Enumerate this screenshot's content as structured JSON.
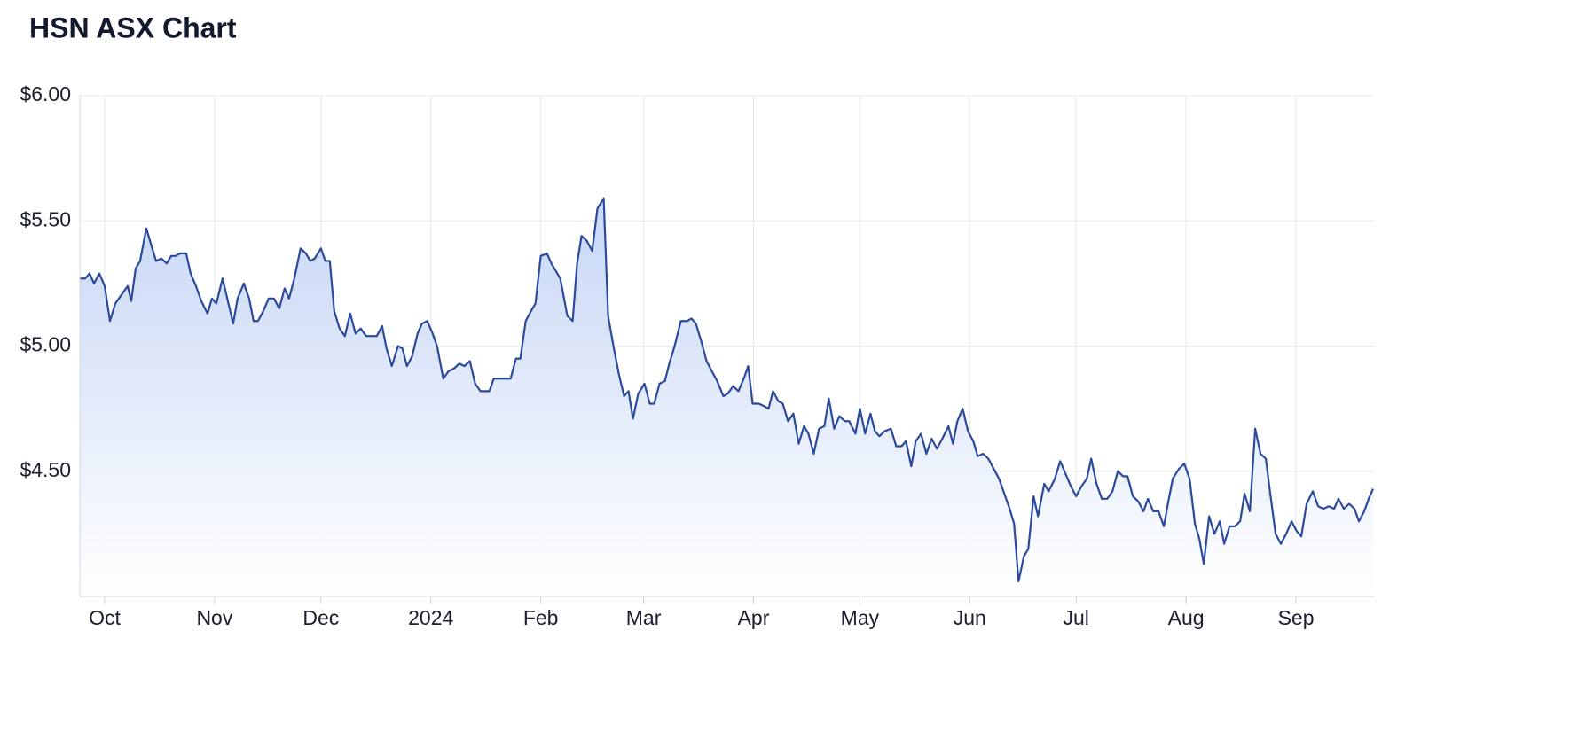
{
  "chart_data": {
    "type": "area",
    "title": "HSN ASX Chart",
    "color": "#2b4a9b",
    "fill_color": "#c5d5f5",
    "grid": true,
    "x": [
      -7,
      -5.5,
      -4.25,
      -3,
      -1.5,
      0,
      1.5,
      3,
      5,
      6.5,
      7.5,
      8.75,
      10,
      11.75,
      13,
      14.5,
      16,
      17.5,
      18.75,
      20,
      21.25,
      23,
      24.25,
      25.75,
      27.25,
      29,
      30.25,
      31.5,
      33.25,
      34.75,
      36.25,
      37.5,
      39.25,
      40.75,
      42,
      43.25,
      44.75,
      46.25,
      47.75,
      49.25,
      50.75,
      52,
      53.5,
      55.25,
      56.75,
      58,
      59.25,
      61,
      62.25,
      63.5,
      64.75,
      66.25,
      67.75,
      69.25,
      70.75,
      72.25,
      73.75,
      76.75,
      78.25,
      79.5,
      81,
      82.75,
      84,
      85.25,
      86.75,
      88.25,
      89.5,
      91,
      92.5,
      93.75,
      95.5,
      97,
      98.5,
      100,
      101.5,
      103,
      104.5,
      106,
      108.5,
      109.75,
      111.25,
      113,
      114.5,
      116,
      117.25,
      118.75,
      120.25,
      121.5,
      123,
      124.75,
      126,
      127.25,
      128.5,
      130.5,
      132,
      133.25,
      134.5,
      136,
      137.5,
      139,
      140.75,
      142,
      143.5,
      145,
      146.5,
      147.75,
      149,
      150.5,
      152.25,
      153.75,
      155,
      156.5,
      158,
      159.25,
      160.75,
      162.5,
      164.25,
      165.5,
      166.75,
      168.25,
      169.75,
      171.25,
      172.75,
      174.5,
      175.75,
      177.25,
      178.75,
      180.25,
      181.5,
      182.75,
      184.5,
      186,
      187.25,
      188.5,
      190,
      191.25,
      192.75,
      194.25,
      195.75,
      197.25,
      198.5,
      200,
      201.5,
      203,
      204.25,
      205.75,
      207.25,
      208.75,
      210,
      211.75,
      213,
      214.5,
      216,
      217.25,
      218.5,
      220,
      221.75,
      223.25,
      224.75,
      226,
      227.5,
      228.75,
      230.25,
      231.75,
      233.25,
      234.75,
      236.25,
      238,
      239.25,
      240.5,
      242,
      243.5,
      245,
      246.25,
      247.75,
      249.25,
      250.75,
      252.25,
      253.75,
      255.25,
      256.5,
      257.75,
      259.25,
      260.5,
      262,
      263.25,
      265,
      266.25,
      268,
      269.5,
      271,
      272.5,
      274,
      275.5,
      277,
      278.25,
      279.75,
      281.25,
      282.75,
      284.25,
      285.75,
      287.25,
      288.5,
      290,
      291.5,
      293,
      294.25,
      295.75,
      297.25,
      298.75,
      300,
      301.25,
      303,
      304.5,
      306,
      307.5,
      308.75,
      310,
      311.5,
      313,
      314.5,
      315.75,
      317.25,
      318.75,
      320.25,
      321.5,
      323,
      324.5,
      326,
      327.5,
      328.75,
      330.25,
      331.75,
      333.25,
      334.75,
      336.25,
      337.5,
      339,
      340.75,
      342.25,
      343.75,
      345.25,
      346.75,
      348,
      349.5,
      351,
      352.5,
      353.75,
      355.25,
      356.5,
      357.75
    ],
    "values": [
      5.27,
      5.27,
      5.29,
      5.25,
      5.29,
      5.24,
      5.1,
      5.17,
      5.21,
      5.24,
      5.18,
      5.31,
      5.34,
      5.47,
      5.41,
      5.34,
      5.35,
      5.33,
      5.36,
      5.36,
      5.37,
      5.37,
      5.29,
      5.24,
      5.18,
      5.13,
      5.19,
      5.17,
      5.27,
      5.18,
      5.09,
      5.19,
      5.25,
      5.19,
      5.1,
      5.1,
      5.14,
      5.19,
      5.19,
      5.15,
      5.23,
      5.19,
      5.27,
      5.39,
      5.37,
      5.34,
      5.35,
      5.39,
      5.34,
      5.34,
      5.14,
      5.07,
      5.04,
      5.13,
      5.05,
      5.07,
      5.04,
      5.04,
      5.08,
      4.99,
      4.92,
      5.0,
      4.99,
      4.92,
      4.96,
      5.05,
      5.09,
      5.1,
      5.05,
      5.0,
      4.87,
      4.9,
      4.91,
      4.93,
      4.92,
      4.94,
      4.85,
      4.82,
      4.82,
      4.87,
      4.87,
      4.87,
      4.87,
      4.95,
      4.95,
      5.1,
      5.14,
      5.17,
      5.36,
      5.37,
      5.33,
      5.3,
      5.27,
      5.12,
      5.1,
      5.33,
      5.44,
      5.42,
      5.38,
      5.55,
      5.59,
      5.12,
      5.0,
      4.89,
      4.8,
      4.82,
      4.71,
      4.81,
      4.85,
      4.77,
      4.77,
      4.85,
      4.86,
      4.93,
      5.0,
      5.1,
      5.1,
      5.11,
      5.09,
      5.02,
      4.94,
      4.9,
      4.86,
      4.8,
      4.81,
      4.84,
      4.82,
      4.87,
      4.92,
      4.77,
      4.77,
      4.76,
      4.75,
      4.82,
      4.78,
      4.77,
      4.7,
      4.73,
      4.61,
      4.68,
      4.65,
      4.57,
      4.67,
      4.68,
      4.79,
      4.67,
      4.72,
      4.7,
      4.7,
      4.65,
      4.75,
      4.65,
      4.73,
      4.66,
      4.64,
      4.66,
      4.67,
      4.6,
      4.6,
      4.62,
      4.52,
      4.62,
      4.65,
      4.57,
      4.63,
      4.59,
      4.63,
      4.68,
      4.61,
      4.7,
      4.75,
      4.66,
      4.62,
      4.56,
      4.57,
      4.55,
      4.51,
      4.47,
      4.41,
      4.35,
      4.29,
      4.06,
      4.16,
      4.19,
      4.4,
      4.32,
      4.45,
      4.42,
      4.47,
      4.54,
      4.49,
      4.44,
      4.4,
      4.44,
      4.47,
      4.55,
      4.45,
      4.39,
      4.39,
      4.42,
      4.5,
      4.48,
      4.48,
      4.4,
      4.38,
      4.34,
      4.39,
      4.34,
      4.34,
      4.28,
      4.38,
      4.47,
      4.51,
      4.53,
      4.47,
      4.29,
      4.23,
      4.13,
      4.32,
      4.25,
      4.3,
      4.21,
      4.28,
      4.28,
      4.3,
      4.41,
      4.34,
      4.67,
      4.57,
      4.55,
      4.41,
      4.25,
      4.21,
      4.25,
      4.3,
      4.26,
      4.24,
      4.37,
      4.42,
      4.36,
      4.35,
      4.36,
      4.35,
      4.39,
      4.35,
      4.37,
      4.35,
      4.3,
      4.34,
      4.39,
      4.43
    ],
    "xlim": [
      -7,
      358
    ],
    "xticks": [
      {
        "value": 0,
        "label": "Oct"
      },
      {
        "value": 31,
        "label": "Nov"
      },
      {
        "value": 61,
        "label": "Dec"
      },
      {
        "value": 92,
        "label": "2024"
      },
      {
        "value": 123,
        "label": "Feb"
      },
      {
        "value": 152,
        "label": "Mar"
      },
      {
        "value": 183,
        "label": "Apr"
      },
      {
        "value": 213,
        "label": "May"
      },
      {
        "value": 244,
        "label": "Jun"
      },
      {
        "value": 274,
        "label": "Jul"
      },
      {
        "value": 305,
        "label": "Aug"
      },
      {
        "value": 336,
        "label": "Sep"
      }
    ],
    "ylim": [
      4,
      6
    ],
    "yticks": [
      {
        "value": 4.5,
        "label": "$4.50"
      },
      {
        "value": 5,
        "label": "$5.00"
      },
      {
        "value": 5.5,
        "label": "$5.50"
      },
      {
        "value": 6,
        "label": "$6.00"
      }
    ]
  }
}
